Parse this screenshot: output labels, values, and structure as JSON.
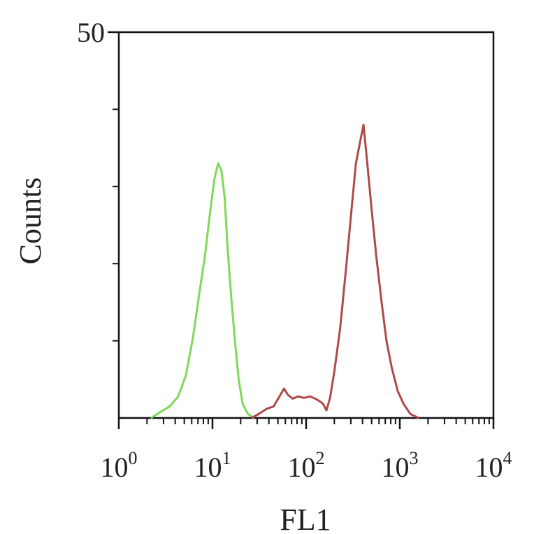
{
  "chart_data": {
    "type": "line",
    "title": "",
    "xlabel": "FL1",
    "ylabel": "Counts",
    "x_scale": "log",
    "xlim": [
      1,
      10000
    ],
    "ylim": [
      0,
      50
    ],
    "x_ticks": [
      {
        "value": 1,
        "base": "10",
        "exp": "0"
      },
      {
        "value": 10,
        "base": "10",
        "exp": "1"
      },
      {
        "value": 100,
        "base": "10",
        "exp": "2"
      },
      {
        "value": 1000,
        "base": "10",
        "exp": "3"
      },
      {
        "value": 10000,
        "base": "10",
        "exp": "4"
      }
    ],
    "y_ticks": [
      {
        "value": 50,
        "label": "50"
      }
    ],
    "y_minor_ticks": [
      10,
      20,
      30,
      40
    ],
    "grid": false,
    "legend": "none",
    "series": [
      {
        "color": "#7ed957",
        "x": [
          2.2,
          2.8,
          3.5,
          4.3,
          5.2,
          6.2,
          7.2,
          8.3,
          9.5,
          10.5,
          11.5,
          12.5,
          13.5,
          14.5,
          16,
          17.5,
          19,
          21,
          24,
          28
        ],
        "y": [
          0,
          0.8,
          1.5,
          2.8,
          5.5,
          10.5,
          16,
          21,
          27,
          31,
          33,
          32,
          28.5,
          22,
          15,
          9.5,
          5,
          1.8,
          0.5,
          0
        ]
      },
      {
        "color": "#b04a4a",
        "x": [
          26,
          31,
          38,
          45,
          52,
          58,
          64,
          72,
          82,
          95,
          110,
          130,
          150,
          165,
          180,
          200,
          230,
          265,
          300,
          340,
          380,
          410,
          450,
          500,
          560,
          640,
          720,
          820,
          950,
          1100,
          1300,
          1600
        ],
        "y": [
          0,
          0.5,
          1.2,
          1.5,
          2.8,
          3.8,
          3,
          2.5,
          2.8,
          2.6,
          2.8,
          2.4,
          1.9,
          1,
          2.6,
          6,
          11.5,
          19,
          26,
          33,
          36,
          38,
          33,
          27,
          21,
          15,
          10,
          6.5,
          3.5,
          1.8,
          0.5,
          0
        ]
      }
    ]
  }
}
